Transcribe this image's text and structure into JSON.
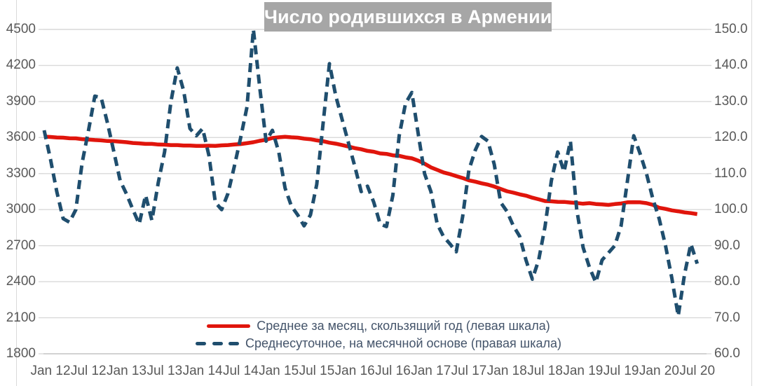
{
  "title": {
    "text": "Число родившихся в Армении"
  },
  "colors": {
    "series_left": "#e0150c",
    "series_right": "#1f4e6e",
    "title_bg": "#a6a6a6",
    "title_text": "#ffffff",
    "axis_label": "#595959",
    "gridline": "#d9d9d9",
    "axis_line": "#c4c4c4",
    "legend_text": "#44546a",
    "chart_bg": "#ffffff"
  },
  "legend": {
    "items": [
      {
        "label": "Среднее за месяц, скользящий год (левая шкала)",
        "style": "solid"
      },
      {
        "label": "Среднесуточное, на месячной основе (правая шкала)",
        "style": "dashed"
      }
    ]
  },
  "chart_data": {
    "type": "line",
    "title": "Число родившихся в Армении",
    "x_frequency": "monthly",
    "x_start": "Jan 2012",
    "x_end": "Jul 2020",
    "x_tick_labels": [
      "Jan 12",
      "Jul 12",
      "Jan 13",
      "Jul 13",
      "Jan 14",
      "Jul 14",
      "Jan 15",
      "Jul 15",
      "Jan 16",
      "Jul 16",
      "Jan 17",
      "Jul 17",
      "Jan 18",
      "Jul 18",
      "Jan 19",
      "Jul 19",
      "Jan 20",
      "Jul 20"
    ],
    "grid": "horizontal",
    "legend_position": "bottom",
    "left_axis": {
      "min": 1800,
      "max": 4500,
      "step": 300,
      "tick_labels": [
        "4500",
        "4200",
        "3900",
        "3600",
        "3300",
        "3000",
        "2700",
        "2400",
        "2100",
        "1800"
      ]
    },
    "right_axis": {
      "min": 60,
      "max": 150,
      "step": 10,
      "tick_labels": [
        "150.0",
        "140.0",
        "130.0",
        "120.0",
        "110.0",
        "100.0",
        "90.0",
        "80.0",
        "70.0",
        "60.0"
      ]
    },
    "series": [
      {
        "name": "Среднее за месяц, скользящий год (левая шкала)",
        "axis": "left",
        "line_style": "solid",
        "color": "#e0150c",
        "lead_in_value": 3608,
        "values": [
          3605,
          3601,
          3599,
          3594,
          3593,
          3587,
          3583,
          3579,
          3576,
          3571,
          3570,
          3565,
          3561,
          3555,
          3552,
          3547,
          3547,
          3542,
          3541,
          3537,
          3537,
          3533,
          3533,
          3530,
          3530,
          3532,
          3531,
          3535,
          3537,
          3542,
          3546,
          3553,
          3561,
          3573,
          3582,
          3596,
          3602,
          3606,
          3602,
          3599,
          3591,
          3586,
          3576,
          3569,
          3557,
          3549,
          3537,
          3525,
          3512,
          3502,
          3489,
          3482,
          3468,
          3464,
          3452,
          3448,
          3435,
          3427,
          3408,
          3382,
          3352,
          3331,
          3309,
          3296,
          3279,
          3263,
          3244,
          3233,
          3219,
          3208,
          3192,
          3172,
          3153,
          3141,
          3127,
          3116,
          3099,
          3086,
          3071,
          3069,
          3065,
          3064,
          3059,
          3055,
          3049,
          3054,
          3047,
          3044,
          3039,
          3046,
          3051,
          3061,
          3062,
          3061,
          3054,
          3040,
          3015,
          3006,
          2994,
          2986,
          2977,
          2971,
          2963
        ]
      },
      {
        "name": "Среднесуточное, на месячной основе (правая шкала)",
        "axis": "right",
        "line_style": "dashed",
        "color": "#1f4e6e",
        "lead_in_value": 122,
        "values": [
          114,
          105,
          97.5,
          96.5,
          100,
          113,
          122,
          131.5,
          131,
          124,
          116,
          108,
          104.3,
          100,
          96,
          104,
          97,
          107.5,
          116,
          130,
          139.3,
          133,
          122.5,
          120.5,
          122.5,
          115,
          102,
          100,
          104.5,
          112,
          120,
          128.5,
          150,
          134,
          119,
          122,
          116,
          106,
          101,
          98.5,
          95.5,
          98.5,
          107,
          124,
          140.5,
          131.5,
          125,
          118.5,
          112,
          105,
          106.5,
          102,
          96,
          95.3,
          104,
          120.5,
          129.5,
          132.5,
          121,
          110,
          105,
          96,
          92.5,
          90.5,
          88.3,
          98,
          111,
          116.5,
          120.3,
          119,
          112.5,
          102,
          99.5,
          95.5,
          92.6,
          86,
          80.7,
          86,
          95.3,
          108,
          116,
          110.5,
          119,
          100,
          89.5,
          84,
          79.8,
          86,
          88,
          90,
          95.5,
          108,
          120.5,
          115.5,
          110,
          103,
          97.5,
          90,
          81,
          70.5,
          82,
          90.5,
          85
        ]
      }
    ]
  }
}
